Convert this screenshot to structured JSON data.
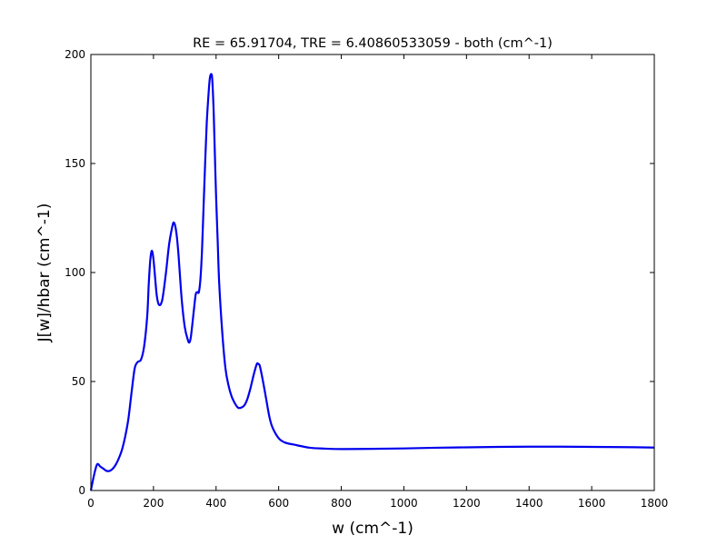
{
  "chart_data": {
    "type": "line",
    "title": "RE = 65.91704, TRE = 6.40860533059 - both (cm^-1)",
    "xlabel": "w (cm^-1)",
    "ylabel": "J[w]/hbar (cm^-1)",
    "xlim": [
      0,
      1800
    ],
    "ylim": [
      0,
      200
    ],
    "grid": false,
    "x_ticks": [
      0,
      200,
      400,
      600,
      800,
      1000,
      1200,
      1400,
      1600,
      1800
    ],
    "y_ticks": [
      0,
      50,
      100,
      150,
      200
    ],
    "series": [
      {
        "color": "#0000ee",
        "x": [
          0,
          10,
          20,
          30,
          40,
          50,
          60,
          70,
          80,
          90,
          100,
          110,
          120,
          130,
          140,
          150,
          160,
          170,
          180,
          185,
          190,
          195,
          200,
          205,
          210,
          215,
          220,
          225,
          230,
          240,
          250,
          260,
          265,
          270,
          275,
          280,
          290,
          300,
          310,
          315,
          320,
          330,
          335,
          340,
          345,
          350,
          355,
          360,
          365,
          370,
          375,
          380,
          385,
          388,
          392,
          395,
          400,
          405,
          410,
          420,
          430,
          440,
          450,
          460,
          470,
          480,
          490,
          500,
          510,
          520,
          530,
          535,
          540,
          550,
          560,
          570,
          580,
          600,
          620,
          650,
          700,
          750,
          800,
          900,
          1000,
          1100,
          1200,
          1300,
          1400,
          1500,
          1600,
          1700,
          1800
        ],
        "y": [
          0,
          7,
          12,
          11,
          10,
          9,
          9,
          10,
          12,
          15,
          19,
          25,
          33,
          45,
          56,
          59,
          60,
          66,
          80,
          95,
          106,
          110,
          106,
          98,
          90,
          86,
          85,
          86,
          89,
          100,
          113,
          121,
          123,
          121,
          116,
          108,
          88,
          75,
          69,
          68,
          71,
          84,
          90,
          91,
          91,
          97,
          110,
          130,
          150,
          168,
          180,
          189,
          191,
          188,
          175,
          160,
          135,
          115,
          95,
          72,
          56,
          48,
          43,
          40,
          38,
          38,
          39,
          42,
          47,
          53,
          58,
          58,
          57,
          50,
          42,
          34,
          29,
          24,
          22,
          21,
          19.6,
          19.2,
          19.0,
          19.1,
          19.3,
          19.6,
          19.8,
          20.0,
          20.1,
          20.1,
          20.0,
          19.9,
          19.7
        ]
      }
    ]
  }
}
